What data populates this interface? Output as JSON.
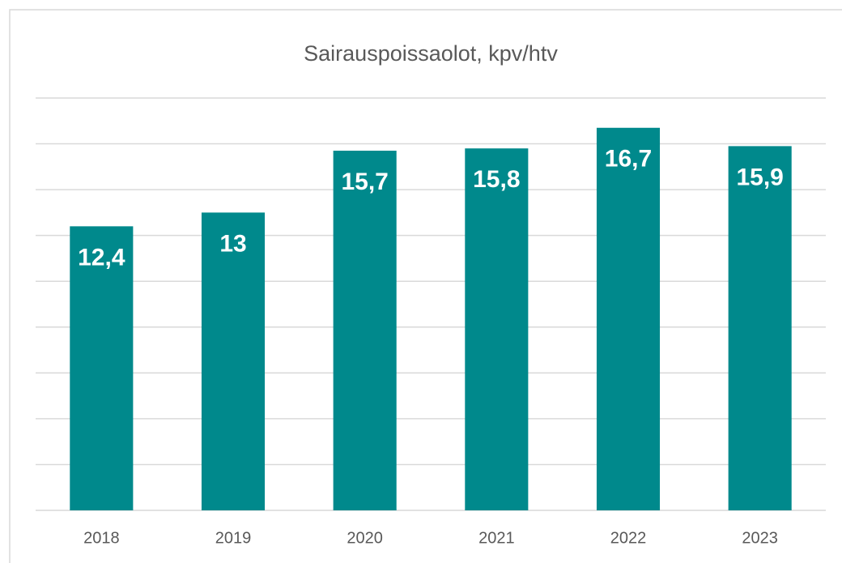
{
  "chart_data": {
    "type": "bar",
    "title": "Sairauspoissaolot, kpv/htv",
    "categories": [
      "2018",
      "2019",
      "2020",
      "2021",
      "2022",
      "2023"
    ],
    "values": [
      12.4,
      13,
      15.7,
      15.8,
      16.7,
      15.9
    ],
    "value_labels": [
      "12,4",
      "13",
      "15,7",
      "15,8",
      "16,7",
      "15,9"
    ],
    "color": "#00898c",
    "ylim": [
      0,
      18
    ],
    "yticks": [
      0,
      2,
      4,
      6,
      8,
      10,
      12,
      14,
      16,
      18
    ],
    "grid": true
  }
}
